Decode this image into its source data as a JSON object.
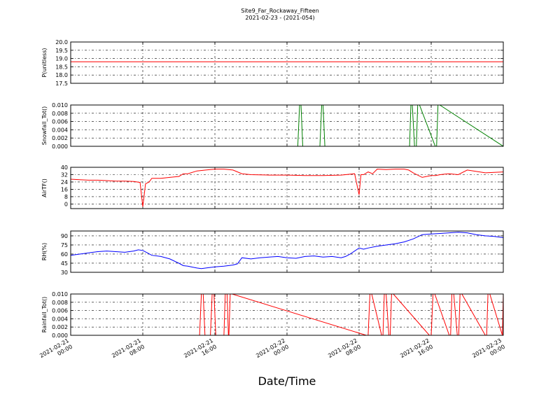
{
  "title_line1": "Site9_Far_Rockaway_Fifteen",
  "title_line2": "2021-02-23 - (2021-054)",
  "xlabel": "Date/Time",
  "x_ticks": [
    {
      "value": 0,
      "line1": "2021-02-21",
      "line2": "00:00"
    },
    {
      "value": 8,
      "line1": "2021-02-21",
      "line2": "08:00"
    },
    {
      "value": 16,
      "line1": "2021-02-21",
      "line2": "16:00"
    },
    {
      "value": 24,
      "line1": "2021-02-22",
      "line2": "00:00"
    },
    {
      "value": 32,
      "line1": "2021-02-22",
      "line2": "08:00"
    },
    {
      "value": 40,
      "line1": "2021-02-22",
      "line2": "16:00"
    },
    {
      "value": 48,
      "line1": "2021-02-23",
      "line2": "00:00"
    }
  ],
  "chart_data": [
    {
      "type": "line",
      "ylabel": "P(unitless)",
      "color": "#ff0000",
      "ylim": [
        17.5,
        20.0
      ],
      "yticks": [
        "17.5",
        "18.0",
        "18.5",
        "19.0",
        "19.5",
        "20.0"
      ],
      "grid": true,
      "x": [
        0,
        48
      ],
      "y": [
        18.8,
        18.8
      ]
    },
    {
      "type": "line",
      "ylabel": "Snowfall_Tot()",
      "color": "#008000",
      "ylim": [
        0,
        0.01
      ],
      "yticks": [
        "0.000",
        "0.002",
        "0.004",
        "0.006",
        "0.008",
        "0.010"
      ],
      "grid": true,
      "x": [
        0,
        25.2,
        25.4,
        25.55,
        25.75,
        27.65,
        27.85,
        28.0,
        28.2,
        37.6,
        37.75,
        37.9,
        38.15,
        38.35,
        38.5,
        38.7,
        40.45,
        40.6,
        40.75,
        40.95,
        48
      ],
      "y": [
        0,
        0,
        0.01,
        0.01,
        0,
        0,
        0.01,
        0.01,
        0,
        0,
        0.01,
        0.01,
        0,
        0,
        0.01,
        0.01,
        0,
        0,
        0.01,
        0.01,
        0
      ]
    },
    {
      "type": "line",
      "ylabel": "AirTF()",
      "color": "#ff0000",
      "ylim": [
        -5,
        40
      ],
      "yticks": [
        "0",
        "8",
        "16",
        "24",
        "32",
        "40"
      ],
      "grid": true,
      "x": [
        0,
        1,
        2,
        3,
        4,
        5,
        6,
        7,
        7.7,
        8,
        8.3,
        8.7,
        9,
        10,
        11,
        12,
        12.5,
        13,
        14,
        15,
        16,
        17,
        18,
        19,
        20,
        22,
        24,
        26,
        28,
        30,
        31.5,
        32,
        32.2,
        32.5,
        33,
        33.5,
        34,
        35,
        36,
        37,
        37.5,
        38,
        39,
        40,
        40.5,
        41,
        41.5,
        42,
        43,
        44,
        46,
        48
      ],
      "y": [
        27,
        26.5,
        26,
        26,
        25.5,
        25,
        25,
        24.5,
        23.5,
        -3,
        22,
        24,
        28,
        28,
        29,
        30,
        33,
        33,
        36,
        37,
        38,
        38,
        37,
        33,
        32,
        31.5,
        31.5,
        31,
        31,
        31.5,
        33,
        10,
        32,
        32,
        35,
        33,
        38,
        37.5,
        38,
        38,
        37,
        34,
        29,
        31,
        31,
        32,
        32.5,
        33,
        32,
        37,
        34,
        35
      ]
    },
    {
      "type": "line",
      "ylabel": "RH(%)",
      "color": "#0000ff",
      "ylim": [
        30,
        98
      ],
      "yticks": [
        "30",
        "45",
        "60",
        "75",
        "90"
      ],
      "grid": true,
      "x": [
        0,
        1,
        2,
        3,
        4,
        5,
        6,
        7,
        7.5,
        8,
        8.5,
        9,
        10,
        11,
        12,
        12.5,
        13,
        14,
        14.5,
        15,
        16,
        17,
        18,
        18.5,
        19,
        20,
        21,
        22,
        23,
        24,
        25,
        26,
        27,
        28,
        29,
        30,
        30.5,
        31,
        32,
        32.5,
        33,
        34,
        35,
        36,
        37,
        38,
        39,
        40,
        41,
        42,
        43,
        44,
        45,
        46,
        47,
        48
      ],
      "y": [
        58,
        60,
        62,
        64,
        65,
        64,
        63,
        65,
        67,
        66,
        62,
        58,
        56,
        52,
        45,
        41,
        40,
        37,
        36,
        37,
        39,
        40,
        42,
        44,
        54,
        52,
        54,
        55,
        56,
        54,
        53,
        56,
        57,
        55,
        56,
        54,
        56,
        60,
        70,
        68,
        70,
        73,
        75,
        77,
        80,
        85,
        92,
        93,
        94,
        95,
        96,
        95,
        92,
        90,
        89,
        87
      ]
    },
    {
      "type": "line",
      "ylabel": "Rainfall_Tot()",
      "color": "#ff0000",
      "ylim": [
        0,
        0.01
      ],
      "yticks": [
        "0.000",
        "0.002",
        "0.004",
        "0.006",
        "0.008",
        "0.010"
      ],
      "grid": true,
      "x": [
        0,
        14.3,
        14.5,
        14.7,
        14.9,
        15.5,
        15.7,
        15.9,
        16.1,
        17.0,
        17.15,
        17.35,
        17.5,
        17.55,
        17.7,
        17.9,
        32.8,
        33.0,
        33.2,
        33.4,
        34.5,
        34.65,
        34.8,
        35.0,
        35.3,
        35.45,
        35.6,
        35.8,
        39.8,
        40.0,
        40.2,
        40.4,
        42.0,
        42.15,
        42.3,
        42.5,
        42.9,
        43.05,
        43.2,
        43.4,
        46.0,
        46.15,
        46.3,
        46.5,
        47.9,
        48.0
      ],
      "y": [
        0,
        0,
        0.01,
        0.01,
        0,
        0,
        0.01,
        0.01,
        0,
        0,
        0.01,
        0.01,
        0,
        0,
        0.01,
        0.01,
        0,
        0,
        0.01,
        0.01,
        0,
        0,
        0.01,
        0.01,
        0,
        0,
        0.01,
        0.01,
        0,
        0,
        0.01,
        0.01,
        0,
        0,
        0.01,
        0.01,
        0,
        0,
        0.01,
        0.01,
        0,
        0,
        0.01,
        0.01,
        0,
        0.01
      ]
    }
  ]
}
